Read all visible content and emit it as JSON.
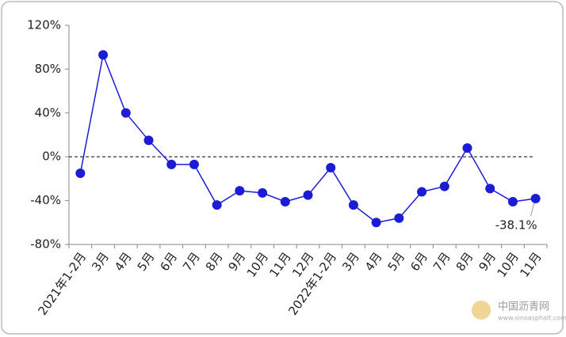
{
  "chart_data": {
    "type": "line",
    "categories": [
      "2021年1-2月",
      "3月",
      "4月",
      "5月",
      "6月",
      "7月",
      "8月",
      "9月",
      "10月",
      "11月",
      "12月",
      "2022年1-2月",
      "3月",
      "4月",
      "5月",
      "6月",
      "7月",
      "8月",
      "9月",
      "10月",
      "11月"
    ],
    "series": [
      {
        "color": "#1c1cd6",
        "values": [
          -15,
          93,
          40,
          15,
          -7,
          -7,
          -44,
          -31,
          -33,
          -41,
          -35,
          -10,
          -44,
          -60,
          -56,
          -32,
          -27,
          8,
          -29,
          -41,
          -38.1
        ],
        "value_labels": [
          null,
          null,
          null,
          null,
          null,
          null,
          null,
          null,
          null,
          null,
          null,
          null,
          null,
          null,
          null,
          null,
          null,
          null,
          null,
          null,
          "-38.1%"
        ]
      }
    ],
    "ylim": [
      -80,
      120
    ],
    "yticks": [
      {
        "value": -80,
        "label": "-80%"
      },
      {
        "value": -40,
        "label": "-40%"
      },
      {
        "value": 0,
        "label": "0%"
      },
      {
        "value": 40,
        "label": "40%"
      },
      {
        "value": 80,
        "label": "80%"
      },
      {
        "value": 120,
        "label": "120%"
      }
    ],
    "zero_line": "dashed",
    "watermark": "中国沥青网",
    "watermark_url": "www.sinoasphalt.com"
  }
}
